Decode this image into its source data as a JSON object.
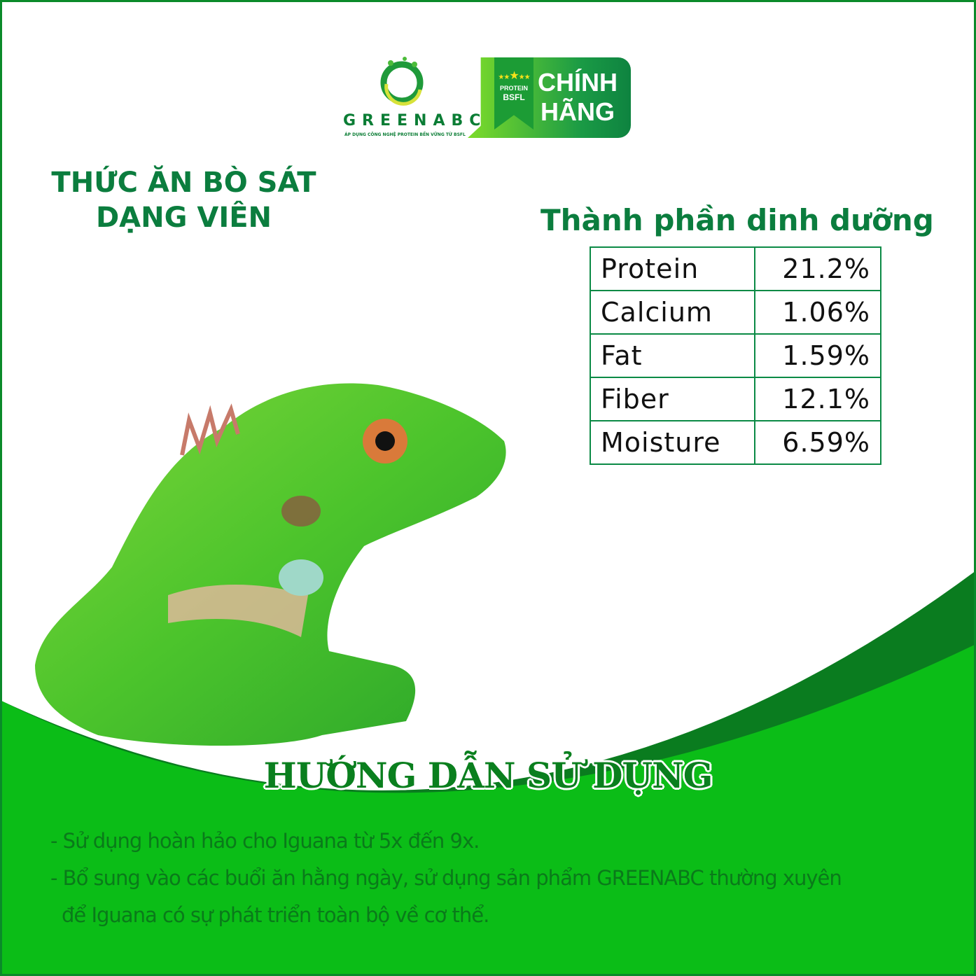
{
  "brand": {
    "name": "GREENABC",
    "tagline": "ÁP DỤNG CÔNG NGHỆ PROTEIN BỀN VỮNG TỪ BSFL",
    "registered": "®"
  },
  "badge": {
    "ribbon_line1": "PROTEIN",
    "ribbon_line2": "BSFL",
    "line1": "CHÍNH",
    "line2": "HÃNG"
  },
  "product_title": {
    "line1": "THỨC ĂN BÒ SÁT",
    "line2": "DẠNG VIÊN"
  },
  "nutrition": {
    "title": "Thành phần dinh dưỡng",
    "rows": [
      {
        "name": "Protein",
        "value": "21.2%"
      },
      {
        "name": "Calcium",
        "value": "1.06%"
      },
      {
        "name": "Fat",
        "value": "1.59%"
      },
      {
        "name": "Fiber",
        "value": "12.1%"
      },
      {
        "name": "Moisture",
        "value": "6.59%"
      }
    ]
  },
  "usage": {
    "title": "HƯỚNG DẪN SỬ DỤNG",
    "line1": "- Sử dụng hoàn hảo cho Iguana từ 5x đến 9x.",
    "line2": "- Bổ sung vào các buổi ăn hằng ngày, sử dụng sản phẩm GREENABC thường xuyên",
    "line3": "để Iguana có sự phát triển toàn bộ về cơ thể."
  },
  "colors": {
    "brand_green": "#0b7d3e",
    "dark_green": "#0a7c1f",
    "bright_green": "#0bbd17",
    "text_green": "#0a7a1a"
  }
}
